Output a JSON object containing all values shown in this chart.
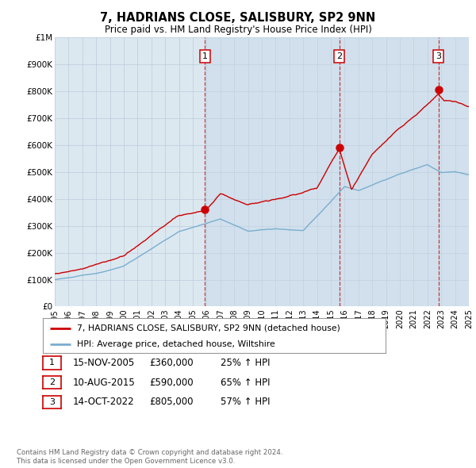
{
  "title": "7, HADRIANS CLOSE, SALISBURY, SP2 9NN",
  "subtitle": "Price paid vs. HM Land Registry's House Price Index (HPI)",
  "xlim": [
    1995,
    2025
  ],
  "ylim": [
    0,
    1000000
  ],
  "yticks": [
    0,
    100000,
    200000,
    300000,
    400000,
    500000,
    600000,
    700000,
    800000,
    900000,
    1000000
  ],
  "ytick_labels": [
    "£0",
    "£100K",
    "£200K",
    "£300K",
    "£400K",
    "£500K",
    "£600K",
    "£700K",
    "£800K",
    "£900K",
    "£1M"
  ],
  "xticks": [
    1995,
    1996,
    1997,
    1998,
    1999,
    2000,
    2001,
    2002,
    2003,
    2004,
    2005,
    2006,
    2007,
    2008,
    2009,
    2010,
    2011,
    2012,
    2013,
    2014,
    2015,
    2016,
    2017,
    2018,
    2019,
    2020,
    2021,
    2022,
    2023,
    2024,
    2025
  ],
  "price_color": "#cc0000",
  "hpi_color": "#7aadcf",
  "chart_bg": "#dce8f0",
  "background_color": "#ffffff",
  "grid_color": "#bbccdd",
  "transactions": [
    {
      "id": 1,
      "date": 2005.88,
      "price": 360000,
      "label": "1",
      "pct": "25%",
      "date_str": "15-NOV-2005"
    },
    {
      "id": 2,
      "date": 2015.61,
      "price": 590000,
      "label": "2",
      "pct": "65%",
      "date_str": "10-AUG-2015"
    },
    {
      "id": 3,
      "date": 2022.79,
      "price": 805000,
      "label": "3",
      "pct": "57%",
      "date_str": "14-OCT-2022"
    }
  ],
  "legend_label_price": "7, HADRIANS CLOSE, SALISBURY, SP2 9NN (detached house)",
  "legend_label_hpi": "HPI: Average price, detached house, Wiltshire",
  "footer1": "Contains HM Land Registry data © Crown copyright and database right 2024.",
  "footer2": "This data is licensed under the Open Government Licence v3.0."
}
